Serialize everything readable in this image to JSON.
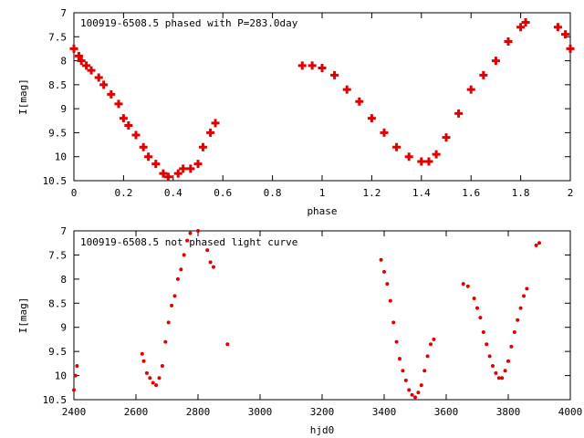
{
  "colors": {
    "points": "#e00000",
    "axes": "#000000",
    "background": "#ffffff"
  },
  "chart_data": [
    {
      "type": "scatter",
      "title": "100919-6508.5 phased with P=283.0day",
      "xlabel": "phase",
      "ylabel": "I[mag]",
      "xlim": [
        0,
        2
      ],
      "ylim": [
        10.5,
        7
      ],
      "y_inverted": true,
      "grid": false,
      "xticks": [
        "0",
        "0.2",
        "0.4",
        "0.6",
        "0.8",
        "1",
        "1.2",
        "1.4",
        "1.6",
        "1.8",
        "2"
      ],
      "yticks": [
        "7",
        "7.5",
        "8",
        "8.5",
        "9",
        "9.5",
        "10",
        "10.5"
      ],
      "marker": "cross",
      "points": [
        [
          0.0,
          7.75
        ],
        [
          0.02,
          7.9
        ],
        [
          0.03,
          8.0
        ],
        [
          0.05,
          8.1
        ],
        [
          0.07,
          8.2
        ],
        [
          0.1,
          8.35
        ],
        [
          0.12,
          8.5
        ],
        [
          0.15,
          8.7
        ],
        [
          0.18,
          8.9
        ],
        [
          0.2,
          9.2
        ],
        [
          0.22,
          9.35
        ],
        [
          0.25,
          9.55
        ],
        [
          0.28,
          9.8
        ],
        [
          0.3,
          10.0
        ],
        [
          0.33,
          10.15
        ],
        [
          0.36,
          10.35
        ],
        [
          0.38,
          10.42
        ],
        [
          0.42,
          10.35
        ],
        [
          0.44,
          10.25
        ],
        [
          0.47,
          10.25
        ],
        [
          0.5,
          10.15
        ],
        [
          0.52,
          9.8
        ],
        [
          0.55,
          9.5
        ],
        [
          0.57,
          9.3
        ],
        [
          0.92,
          8.1
        ],
        [
          0.96,
          8.1
        ],
        [
          1.0,
          8.15
        ],
        [
          1.05,
          8.3
        ],
        [
          1.1,
          8.6
        ],
        [
          1.15,
          8.85
        ],
        [
          1.2,
          9.2
        ],
        [
          1.25,
          9.5
        ],
        [
          1.3,
          9.8
        ],
        [
          1.35,
          10.0
        ],
        [
          1.4,
          10.1
        ],
        [
          1.43,
          10.1
        ],
        [
          1.46,
          9.95
        ],
        [
          1.5,
          9.6
        ],
        [
          1.55,
          9.1
        ],
        [
          1.6,
          8.6
        ],
        [
          1.65,
          8.3
        ],
        [
          1.7,
          8.0
        ],
        [
          1.75,
          7.6
        ],
        [
          1.8,
          7.3
        ],
        [
          1.82,
          7.2
        ],
        [
          1.95,
          7.3
        ],
        [
          1.98,
          7.45
        ],
        [
          2.0,
          7.75
        ]
      ]
    },
    {
      "type": "scatter",
      "title": "100919-6508.5 not phased light curve",
      "xlabel": "hjd0",
      "ylabel": "I[mag]",
      "xlim": [
        2400,
        4000
      ],
      "ylim": [
        10.5,
        7
      ],
      "y_inverted": true,
      "grid": false,
      "xticks": [
        "2400",
        "2600",
        "2800",
        "3000",
        "3200",
        "3400",
        "3600",
        "3800",
        "4000"
      ],
      "yticks": [
        "7",
        "7.5",
        "8",
        "8.5",
        "9",
        "9.5",
        "10",
        "10.5"
      ],
      "marker": "dot",
      "points": [
        [
          2400,
          10.3
        ],
        [
          2405,
          10.0
        ],
        [
          2410,
          9.8
        ],
        [
          2620,
          9.55
        ],
        [
          2625,
          9.7
        ],
        [
          2635,
          9.95
        ],
        [
          2645,
          10.05
        ],
        [
          2655,
          10.15
        ],
        [
          2665,
          10.2
        ],
        [
          2675,
          10.05
        ],
        [
          2685,
          9.8
        ],
        [
          2695,
          9.3
        ],
        [
          2705,
          8.9
        ],
        [
          2715,
          8.55
        ],
        [
          2725,
          8.35
        ],
        [
          2735,
          8.0
        ],
        [
          2745,
          7.8
        ],
        [
          2755,
          7.5
        ],
        [
          2765,
          7.2
        ],
        [
          2775,
          7.05
        ],
        [
          2800,
          7.0
        ],
        [
          2830,
          7.4
        ],
        [
          2840,
          7.65
        ],
        [
          2850,
          7.75
        ],
        [
          2895,
          9.35
        ],
        [
          3390,
          7.6
        ],
        [
          3400,
          7.85
        ],
        [
          3410,
          8.1
        ],
        [
          3420,
          8.45
        ],
        [
          3430,
          8.9
        ],
        [
          3440,
          9.3
        ],
        [
          3450,
          9.65
        ],
        [
          3460,
          9.9
        ],
        [
          3470,
          10.1
        ],
        [
          3480,
          10.3
        ],
        [
          3490,
          10.4
        ],
        [
          3500,
          10.45
        ],
        [
          3510,
          10.35
        ],
        [
          3520,
          10.2
        ],
        [
          3530,
          9.9
        ],
        [
          3540,
          9.6
        ],
        [
          3550,
          9.35
        ],
        [
          3560,
          9.25
        ],
        [
          3655,
          8.1
        ],
        [
          3670,
          8.15
        ],
        [
          3690,
          8.4
        ],
        [
          3700,
          8.6
        ],
        [
          3710,
          8.8
        ],
        [
          3720,
          9.1
        ],
        [
          3730,
          9.35
        ],
        [
          3740,
          9.6
        ],
        [
          3750,
          9.8
        ],
        [
          3760,
          9.95
        ],
        [
          3770,
          10.05
        ],
        [
          3780,
          10.05
        ],
        [
          3790,
          9.9
        ],
        [
          3800,
          9.7
        ],
        [
          3810,
          9.4
        ],
        [
          3820,
          9.1
        ],
        [
          3830,
          8.85
        ],
        [
          3840,
          8.6
        ],
        [
          3850,
          8.35
        ],
        [
          3860,
          8.2
        ],
        [
          3890,
          7.3
        ],
        [
          3900,
          7.25
        ]
      ]
    }
  ]
}
